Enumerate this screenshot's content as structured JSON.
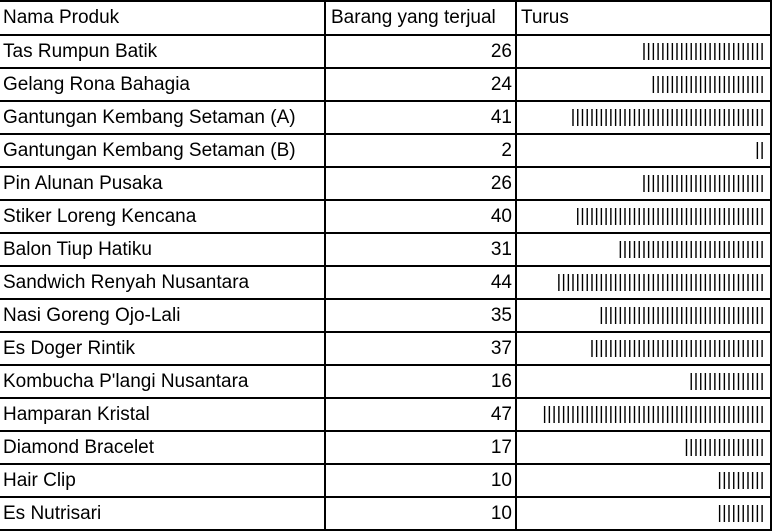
{
  "sheet": {
    "headers": {
      "name": "Nama Produk",
      "sold": "Barang yang terjual",
      "tally": "Turus"
    },
    "rows": [
      {
        "name": "Tas Rumpun Batik",
        "sold": 26
      },
      {
        "name": "Gelang Rona Bahagia",
        "sold": 24
      },
      {
        "name": "Gantungan Kembang Setaman (A)",
        "sold": 41
      },
      {
        "name": "Gantungan Kembang Setaman (B)",
        "sold": 2
      },
      {
        "name": "Pin Alunan Pusaka",
        "sold": 26
      },
      {
        "name": "Stiker Loreng Kencana",
        "sold": 40
      },
      {
        "name": "Balon Tiup Hatiku",
        "sold": 31
      },
      {
        "name": "Sandwich Renyah Nusantara",
        "sold": 44
      },
      {
        "name": "Nasi Goreng Ojo-Lali",
        "sold": 35
      },
      {
        "name": "Es Doger Rintik",
        "sold": 37
      },
      {
        "name": "Kombucha P'langi Nusantara",
        "sold": 16
      },
      {
        "name": "Hamparan Kristal",
        "sold": 47
      },
      {
        "name": "Diamond Bracelet",
        "sold": 17
      },
      {
        "name": "Hair Clip",
        "sold": 10
      },
      {
        "name": "Es Nutrisari",
        "sold": 10
      }
    ]
  }
}
